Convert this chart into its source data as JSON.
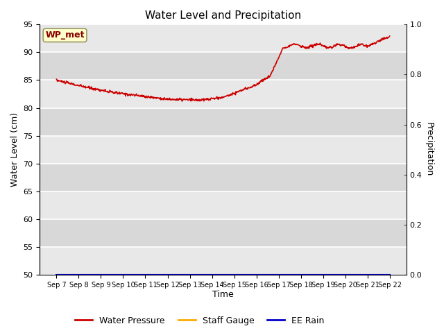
{
  "title": "Water Level and Precipitation",
  "xlabel": "Time",
  "ylabel_left": "Water Level (cm)",
  "ylabel_right": "Precipitation",
  "ylim_left": [
    50,
    95
  ],
  "ylim_right": [
    0.0,
    1.0
  ],
  "yticks_left": [
    50,
    55,
    60,
    65,
    70,
    75,
    80,
    85,
    90,
    95
  ],
  "yticks_right": [
    0.0,
    0.2,
    0.4,
    0.6,
    0.8,
    1.0
  ],
  "xtick_labels": [
    "Sep 7",
    "Sep 8",
    "Sep 9",
    "Sep 10",
    "Sep 11",
    "Sep 12",
    "Sep 13",
    "Sep 14",
    "Sep 15",
    "Sep 16",
    "Sep 17",
    "Sep 18",
    "Sep 19",
    "Sep 20",
    "Sep 21",
    "Sep 22"
  ],
  "water_pressure_color": "#cc0000",
  "staff_gauge_color": "#ffaa00",
  "ee_rain_color": "#0000cc",
  "band_color_light": "#e8e8e8",
  "band_color_dark": "#d8d8d8",
  "grid_color": "white",
  "annotation_text": "WP_met",
  "annotation_facecolor": "#ffffcc",
  "annotation_edgecolor": "#999966",
  "annotation_textcolor": "#880000",
  "legend_entries": [
    "Water Pressure",
    "Staff Gauge",
    "EE Rain"
  ],
  "right_tick_color": "#555555"
}
